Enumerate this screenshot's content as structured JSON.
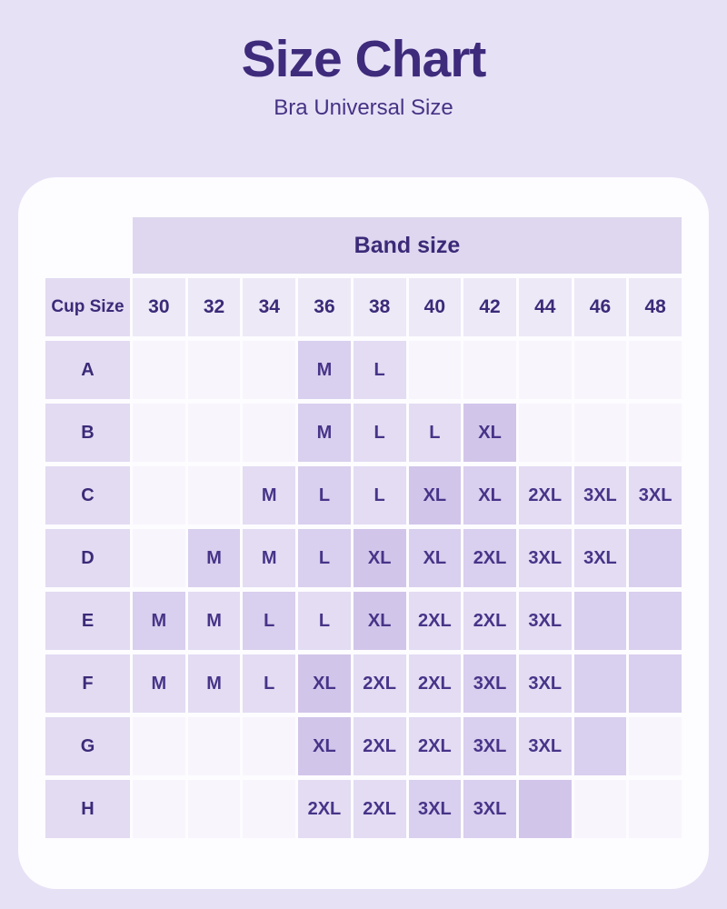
{
  "chart_data": {
    "type": "table",
    "title": "Size Chart",
    "subtitle": "Bra Universal Size",
    "band_header": "Band size",
    "corner_header": "Cup Size",
    "band_sizes": [
      "30",
      "32",
      "34",
      "36",
      "38",
      "40",
      "42",
      "44",
      "46",
      "48"
    ],
    "rows": [
      {
        "cup": "A",
        "cells": [
          {
            "v": "",
            "tone": 0
          },
          {
            "v": "",
            "tone": 0
          },
          {
            "v": "",
            "tone": 0
          },
          {
            "v": "M",
            "tone": 2
          },
          {
            "v": "L",
            "tone": 1
          },
          {
            "v": "",
            "tone": 0
          },
          {
            "v": "",
            "tone": 0
          },
          {
            "v": "",
            "tone": 0
          },
          {
            "v": "",
            "tone": 0
          },
          {
            "v": "",
            "tone": 0
          }
        ]
      },
      {
        "cup": "B",
        "cells": [
          {
            "v": "",
            "tone": 0
          },
          {
            "v": "",
            "tone": 0
          },
          {
            "v": "",
            "tone": 0
          },
          {
            "v": "M",
            "tone": 2
          },
          {
            "v": "L",
            "tone": 1
          },
          {
            "v": "L",
            "tone": 1
          },
          {
            "v": "XL",
            "tone": 3
          },
          {
            "v": "",
            "tone": 0
          },
          {
            "v": "",
            "tone": 0
          },
          {
            "v": "",
            "tone": 0
          }
        ]
      },
      {
        "cup": "C",
        "cells": [
          {
            "v": "",
            "tone": 0
          },
          {
            "v": "",
            "tone": 0
          },
          {
            "v": "M",
            "tone": 1
          },
          {
            "v": "L",
            "tone": 2
          },
          {
            "v": "L",
            "tone": 1
          },
          {
            "v": "XL",
            "tone": 3
          },
          {
            "v": "XL",
            "tone": 2
          },
          {
            "v": "2XL",
            "tone": 1
          },
          {
            "v": "3XL",
            "tone": 1
          },
          {
            "v": "3XL",
            "tone": 1
          }
        ]
      },
      {
        "cup": "D",
        "cells": [
          {
            "v": "",
            "tone": 0
          },
          {
            "v": "M",
            "tone": 2
          },
          {
            "v": "M",
            "tone": 1
          },
          {
            "v": "L",
            "tone": 2
          },
          {
            "v": "XL",
            "tone": 3
          },
          {
            "v": "XL",
            "tone": 2
          },
          {
            "v": "2XL",
            "tone": 2
          },
          {
            "v": "3XL",
            "tone": 1
          },
          {
            "v": "3XL",
            "tone": 1
          },
          {
            "v": "",
            "tone": 2
          }
        ]
      },
      {
        "cup": "E",
        "cells": [
          {
            "v": "M",
            "tone": 2
          },
          {
            "v": "M",
            "tone": 1
          },
          {
            "v": "L",
            "tone": 2
          },
          {
            "v": "L",
            "tone": 1
          },
          {
            "v": "XL",
            "tone": 3
          },
          {
            "v": "2XL",
            "tone": 1
          },
          {
            "v": "2XL",
            "tone": 1
          },
          {
            "v": "3XL",
            "tone": 1
          },
          {
            "v": "",
            "tone": 2
          },
          {
            "v": "",
            "tone": 2
          }
        ]
      },
      {
        "cup": "F",
        "cells": [
          {
            "v": "M",
            "tone": 1
          },
          {
            "v": "M",
            "tone": 1
          },
          {
            "v": "L",
            "tone": 1
          },
          {
            "v": "XL",
            "tone": 3
          },
          {
            "v": "2XL",
            "tone": 1
          },
          {
            "v": "2XL",
            "tone": 1
          },
          {
            "v": "3XL",
            "tone": 2
          },
          {
            "v": "3XL",
            "tone": 1
          },
          {
            "v": "",
            "tone": 2
          },
          {
            "v": "",
            "tone": 2
          }
        ]
      },
      {
        "cup": "G",
        "cells": [
          {
            "v": "",
            "tone": 0
          },
          {
            "v": "",
            "tone": 0
          },
          {
            "v": "",
            "tone": 0
          },
          {
            "v": "XL",
            "tone": 3
          },
          {
            "v": "2XL",
            "tone": 1
          },
          {
            "v": "2XL",
            "tone": 1
          },
          {
            "v": "3XL",
            "tone": 2
          },
          {
            "v": "3XL",
            "tone": 1
          },
          {
            "v": "",
            "tone": 2
          },
          {
            "v": "",
            "tone": 0
          }
        ]
      },
      {
        "cup": "H",
        "cells": [
          {
            "v": "",
            "tone": 0
          },
          {
            "v": "",
            "tone": 0
          },
          {
            "v": "",
            "tone": 0
          },
          {
            "v": "2XL",
            "tone": 1
          },
          {
            "v": "2XL",
            "tone": 1
          },
          {
            "v": "3XL",
            "tone": 2
          },
          {
            "v": "3XL",
            "tone": 2
          },
          {
            "v": "",
            "tone": 3
          },
          {
            "v": "",
            "tone": 0
          },
          {
            "v": "",
            "tone": 0
          }
        ]
      }
    ]
  },
  "colors": {
    "page_bg": "#e7e1f6",
    "card_bg": "#fdfcff",
    "band_header_bg": "#ded7ef",
    "size_header_bg": "#ede9f7",
    "label_bg": "#e2dbf2",
    "title_text": "#3e2b7b",
    "subtitle_text": "#453384",
    "header_text": "#3b2a78",
    "value_text": "#473488",
    "tones": [
      "#f8f5fc",
      "#e3dcf3",
      "#d9cfee",
      "#d2c5ea"
    ]
  }
}
